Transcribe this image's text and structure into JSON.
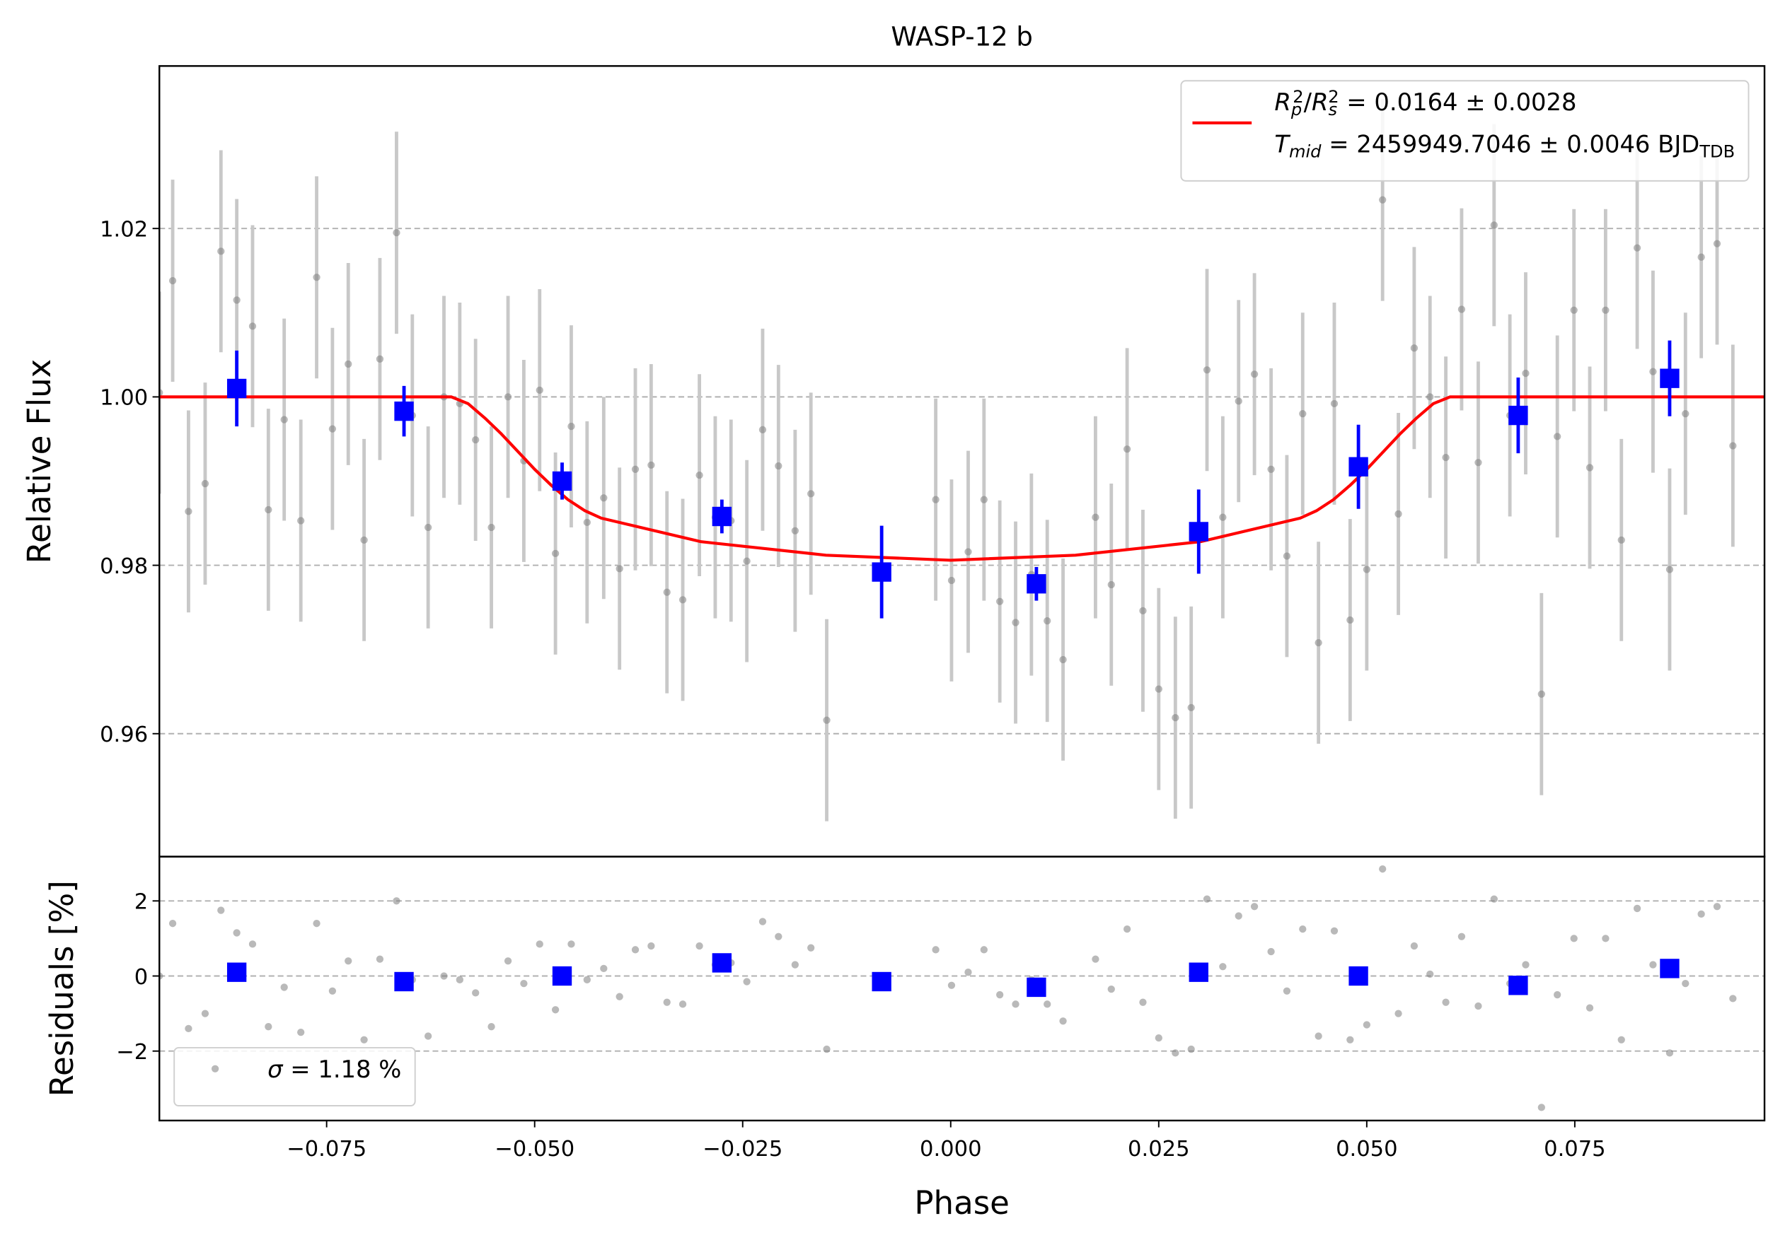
{
  "chart_data": [
    {
      "type": "scatter",
      "title": "WASP-12 b",
      "ylabel": "Relative Flux",
      "xlim": [
        -0.0951,
        0.0978
      ],
      "ylim": [
        0.9454,
        1.0393
      ],
      "yticks": [
        {
          "value": 0.96,
          "label": "0.96"
        },
        {
          "value": 0.98,
          "label": "0.98"
        },
        {
          "value": 1.0,
          "label": "1.00"
        },
        {
          "value": 1.02,
          "label": "1.02"
        }
      ],
      "grid": true,
      "legend": "upper right",
      "series": [
        {
          "style": "points",
          "color": "#808080",
          "errcolor": "#c8c8c8",
          "yerr": 0.012,
          "x": [
            -0.0951,
            -0.0935,
            -0.0916,
            -0.0896,
            -0.0877,
            -0.0858,
            -0.0839,
            -0.082,
            -0.0801,
            -0.0781,
            -0.0762,
            -0.0743,
            -0.0724,
            -0.0705,
            -0.0686,
            -0.0666,
            -0.0647,
            -0.0628,
            -0.0609,
            -0.059,
            -0.0571,
            -0.0552,
            -0.0532,
            -0.0513,
            -0.0494,
            -0.0475,
            -0.0456,
            -0.0437,
            -0.0417,
            -0.0398,
            -0.0379,
            -0.036,
            -0.0341,
            -0.0322,
            -0.0302,
            -0.0283,
            -0.0264,
            -0.0245,
            -0.0226,
            -0.0207,
            -0.0187,
            -0.0168,
            -0.0149,
            -0.0018,
            0.0001,
            0.0021,
            0.004,
            0.0059,
            0.0078,
            0.0097,
            0.0116,
            0.0135,
            0.0174,
            0.0193,
            0.0212,
            0.0231,
            0.025,
            0.027,
            0.0289,
            0.0308,
            0.0327,
            0.0346,
            0.0365,
            0.0385,
            0.0404,
            0.0423,
            0.0442,
            0.0461,
            0.048,
            0.05,
            0.0519,
            0.0538,
            0.0557,
            0.0576,
            0.0595,
            0.0614,
            0.0634,
            0.0653,
            0.0672,
            0.0691,
            0.071,
            0.0729,
            0.0749,
            0.0768,
            0.0787,
            0.0806,
            0.0825,
            0.0844,
            0.0864,
            0.0883,
            0.0902,
            0.0921,
            0.094
          ],
          "values": [
            1.0005,
            1.0138,
            0.9864,
            0.9897,
            1.0173,
            1.0115,
            1.0084,
            0.9866,
            0.9973,
            0.9853,
            1.0142,
            0.9962,
            1.0039,
            0.983,
            1.0045,
            1.0195,
            0.9978,
            0.9845,
            1.0,
            0.9992,
            0.9949,
            0.9845,
            1.0,
            0.9924,
            1.0008,
            0.9814,
            0.9965,
            0.9851,
            0.988,
            0.9796,
            0.9914,
            0.9919,
            0.9768,
            0.9759,
            0.9907,
            0.9857,
            0.9853,
            0.9805,
            0.9961,
            0.9918,
            0.9841,
            0.9885,
            0.9616,
            0.9878,
            0.9782,
            0.9816,
            0.9878,
            0.9757,
            0.9732,
            0.9789,
            0.9734,
            0.9688,
            0.9857,
            0.9777,
            0.9938,
            0.9746,
            0.9653,
            0.9619,
            0.9631,
            1.0032,
            0.9857,
            0.9995,
            1.0027,
            0.9914,
            0.9811,
            0.998,
            0.9708,
            0.9992,
            0.9735,
            0.9795,
            1.0234,
            0.9861,
            1.0058,
            1.0,
            0.9928,
            1.0104,
            0.9922,
            1.0204,
            0.9978,
            1.0028,
            0.9647,
            0.9953,
            1.0103,
            0.9916,
            1.0103,
            0.983,
            1.0177,
            1.003,
            0.9795,
            0.998,
            1.0166,
            1.0182,
            0.9942
          ]
        },
        {
          "style": "line",
          "color": "#ff0000",
          "label_lines": [
            [
              [
                "R",
                "i"
              ],
              [
                "p",
                "isub"
              ],
              [
                "2",
                "sup"
              ],
              [
                "/",
                "n"
              ],
              [
                "R",
                "i"
              ],
              [
                "s",
                "isub"
              ],
              [
                "2",
                "sup"
              ],
              [
                " = 0.0164 ± 0.0028",
                "n"
              ]
            ],
            [
              [
                "T",
                "i"
              ],
              [
                "mid",
                "isub"
              ],
              [
                " = 2459949.7046 ± 0.0046 BJD",
                "n"
              ],
              [
                "TDB",
                "sub"
              ]
            ]
          ],
          "x": [
            -0.0951,
            -0.06,
            -0.058,
            -0.056,
            -0.054,
            -0.052,
            -0.05,
            -0.048,
            -0.046,
            -0.044,
            -0.042,
            -0.03,
            -0.015,
            0.0,
            0.015,
            0.03,
            0.042,
            0.044,
            0.046,
            0.048,
            0.05,
            0.052,
            0.054,
            0.056,
            0.058,
            0.06,
            0.0978
          ],
          "values": [
            1.0,
            1.0,
            0.9992,
            0.9975,
            0.9956,
            0.9935,
            0.9914,
            0.9895,
            0.9878,
            0.9865,
            0.9856,
            0.9828,
            0.9812,
            0.9806,
            0.9812,
            0.9828,
            0.9856,
            0.9865,
            0.9878,
            0.9895,
            0.9914,
            0.9935,
            0.9956,
            0.9975,
            0.9992,
            1.0,
            1.0
          ]
        },
        {
          "style": "binned",
          "color": "#0000ff",
          "x": [
            -0.0858,
            -0.0657,
            -0.0467,
            -0.0275,
            -0.0083,
            0.0103,
            0.0298,
            0.049,
            0.0682,
            0.0864
          ],
          "values": [
            1.001,
            0.9983,
            0.99,
            0.9858,
            0.9792,
            0.9778,
            0.984,
            0.9917,
            0.9978,
            1.0022
          ],
          "errors": [
            0.0045,
            0.003,
            0.0022,
            0.002,
            0.0055,
            0.002,
            0.005,
            0.005,
            0.0045,
            0.0045
          ]
        }
      ]
    },
    {
      "type": "scatter",
      "ylabel": "Residuals [%]",
      "xlabel": "Phase",
      "xlim": [
        -0.0951,
        0.0978
      ],
      "ylim": [
        -3.85,
        3.18
      ],
      "xticks": [
        {
          "value": -0.075,
          "label": "−0.075"
        },
        {
          "value": -0.05,
          "label": "−0.050"
        },
        {
          "value": -0.025,
          "label": "−0.025"
        },
        {
          "value": 0,
          "label": "0.000"
        },
        {
          "value": 0.025,
          "label": "0.025"
        },
        {
          "value": 0.05,
          "label": "0.050"
        },
        {
          "value": 0.075,
          "label": "0.075"
        }
      ],
      "yticks": [
        {
          "value": -2,
          "label": "−2"
        },
        0,
        2
      ],
      "grid": true,
      "legend": "lower left",
      "series": [
        {
          "style": "points",
          "color": "#808080",
          "label_lines": [
            [
              [
                "σ",
                "i"
              ],
              [
                " = 1.18 %",
                "n"
              ]
            ]
          ],
          "x": [
            -0.0951,
            -0.0935,
            -0.0916,
            -0.0896,
            -0.0877,
            -0.0858,
            -0.0839,
            -0.082,
            -0.0801,
            -0.0781,
            -0.0762,
            -0.0743,
            -0.0724,
            -0.0705,
            -0.0686,
            -0.0666,
            -0.0647,
            -0.0628,
            -0.0609,
            -0.059,
            -0.0571,
            -0.0552,
            -0.0532,
            -0.0513,
            -0.0494,
            -0.0475,
            -0.0456,
            -0.0437,
            -0.0417,
            -0.0398,
            -0.0379,
            -0.036,
            -0.0341,
            -0.0322,
            -0.0302,
            -0.0283,
            -0.0264,
            -0.0245,
            -0.0226,
            -0.0207,
            -0.0187,
            -0.0168,
            -0.0149,
            -0.0018,
            0.0001,
            0.0021,
            0.004,
            0.0059,
            0.0078,
            0.0097,
            0.0116,
            0.0135,
            0.0174,
            0.0193,
            0.0212,
            0.0231,
            0.025,
            0.027,
            0.0289,
            0.0308,
            0.0327,
            0.0346,
            0.0365,
            0.0385,
            0.0404,
            0.0423,
            0.0442,
            0.0461,
            0.048,
            0.05,
            0.0519,
            0.0538,
            0.0557,
            0.0576,
            0.0595,
            0.0614,
            0.0634,
            0.0653,
            0.0672,
            0.0691,
            0.071,
            0.0729,
            0.0749,
            0.0768,
            0.0787,
            0.0806,
            0.0825,
            0.0844,
            0.0864,
            0.0883,
            0.0902,
            0.0921,
            0.094
          ],
          "values": [
            0,
            1.4,
            -1.4,
            -1.0,
            1.75,
            1.15,
            0.85,
            -1.35,
            -0.3,
            -1.5,
            1.4,
            -0.4,
            0.4,
            -1.7,
            0.45,
            2.0,
            -0.1,
            -1.6,
            0,
            -0.1,
            -0.45,
            -1.35,
            0.4,
            -0.2,
            0.85,
            -0.9,
            0.85,
            -0.1,
            0.2,
            -0.55,
            0.7,
            0.8,
            -0.7,
            -0.75,
            0.8,
            0.3,
            0.35,
            -0.15,
            1.45,
            1.05,
            0.3,
            0.75,
            -1.95,
            0.7,
            -0.25,
            0.1,
            0.7,
            -0.5,
            -0.75,
            -0.1,
            -0.75,
            -1.2,
            0.45,
            -0.35,
            1.25,
            -0.7,
            -1.65,
            -2.05,
            -1.95,
            2.05,
            0.25,
            1.6,
            1.85,
            0.65,
            -0.4,
            1.25,
            -1.6,
            1.2,
            -1.7,
            -1.3,
            2.85,
            -1.0,
            0.8,
            0.05,
            -0.7,
            1.05,
            -0.8,
            2.05,
            -0.2,
            0.3,
            -3.5,
            -0.5,
            1.0,
            -0.85,
            1.0,
            -1.7,
            1.8,
            0.3,
            -2.05,
            -0.2,
            1.65,
            1.85,
            -0.6
          ]
        },
        {
          "style": "binned",
          "color": "#0000ff",
          "x": [
            -0.0858,
            -0.0657,
            -0.0467,
            -0.0275,
            -0.0083,
            0.0103,
            0.0298,
            0.049,
            0.0682,
            0.0864
          ],
          "values": [
            0.1,
            -0.15,
            0.0,
            0.35,
            -0.15,
            -0.3,
            0.1,
            0.0,
            -0.25,
            0.2
          ]
        }
      ]
    }
  ]
}
